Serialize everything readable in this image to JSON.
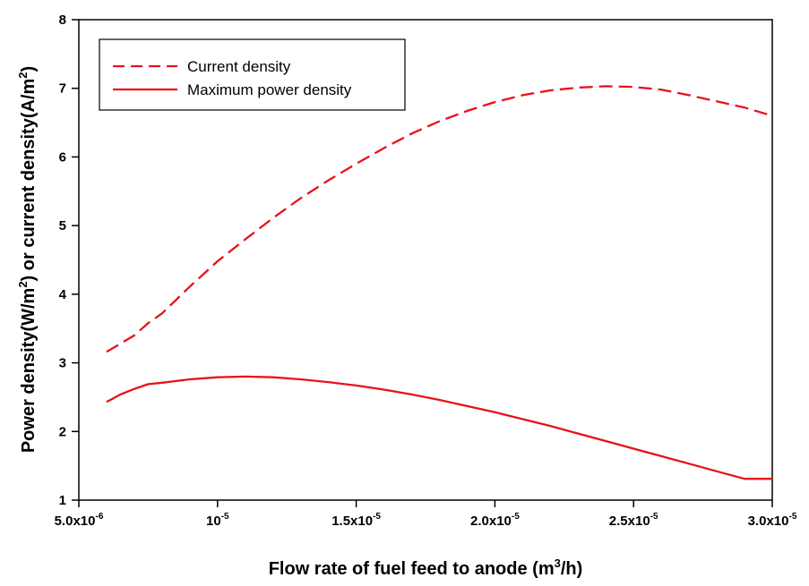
{
  "chart_data": {
    "type": "line",
    "xlabel": {
      "main": "Flow rate of fuel feed to anode (m",
      "sup": "3",
      "rest": "/h)"
    },
    "ylabel": {
      "p1": "Power density(W/m",
      "s1": "2",
      "p2": ") or current density(A/m",
      "s2": "2",
      "p3": ")"
    },
    "xlim": [
      5e-06,
      3e-05
    ],
    "ylim": [
      1,
      8
    ],
    "x_ticks": [
      {
        "value": 5e-06,
        "base": "5.0x10",
        "exp": "-6"
      },
      {
        "value": 1e-05,
        "base": "10",
        "exp": "-5"
      },
      {
        "value": 1.5e-05,
        "base": "1.5x10",
        "exp": "-5"
      },
      {
        "value": 2e-05,
        "base": "2.0x10",
        "exp": "-5"
      },
      {
        "value": 2.5e-05,
        "base": "2.5x10",
        "exp": "-5"
      },
      {
        "value": 3e-05,
        "base": "3.0x10",
        "exp": "-5"
      }
    ],
    "y_ticks": [
      {
        "value": 1,
        "label": "1"
      },
      {
        "value": 2,
        "label": "2"
      },
      {
        "value": 3,
        "label": "3"
      },
      {
        "value": 4,
        "label": "4"
      },
      {
        "value": 5,
        "label": "5"
      },
      {
        "value": 6,
        "label": "6"
      },
      {
        "value": 7,
        "label": "7"
      },
      {
        "value": 8,
        "label": "8"
      }
    ],
    "legend_position": "top-left",
    "series": [
      {
        "name": "Current density",
        "style": "dashed",
        "color": "#e8111b",
        "points": [
          [
            6e-06,
            3.16
          ],
          [
            7e-06,
            3.4
          ],
          [
            7.5e-06,
            3.58
          ],
          [
            8e-06,
            3.72
          ],
          [
            9e-06,
            4.11
          ],
          [
            1e-05,
            4.48
          ],
          [
            1.1e-05,
            4.8
          ],
          [
            1.2e-05,
            5.11
          ],
          [
            1.3e-05,
            5.4
          ],
          [
            1.4e-05,
            5.66
          ],
          [
            1.5e-05,
            5.9
          ],
          [
            1.6e-05,
            6.13
          ],
          [
            1.7e-05,
            6.34
          ],
          [
            1.8e-05,
            6.52
          ],
          [
            1.9e-05,
            6.67
          ],
          [
            2e-05,
            6.8
          ],
          [
            2.1e-05,
            6.9
          ],
          [
            2.2e-05,
            6.97
          ],
          [
            2.3e-05,
            7.01
          ],
          [
            2.4e-05,
            7.03
          ],
          [
            2.5e-05,
            7.02
          ],
          [
            2.6e-05,
            6.98
          ],
          [
            2.7e-05,
            6.9
          ],
          [
            2.8e-05,
            6.81
          ],
          [
            2.9e-05,
            6.72
          ],
          [
            3e-05,
            6.6
          ]
        ]
      },
      {
        "name": "Maximum power density",
        "style": "solid",
        "color": "#e8111b",
        "points": [
          [
            6e-06,
            2.43
          ],
          [
            6.5e-06,
            2.54
          ],
          [
            7e-06,
            2.62
          ],
          [
            7.5e-06,
            2.69
          ],
          [
            8e-06,
            2.71
          ],
          [
            9e-06,
            2.76
          ],
          [
            1e-05,
            2.79
          ],
          [
            1.1e-05,
            2.8
          ],
          [
            1.2e-05,
            2.79
          ],
          [
            1.3e-05,
            2.76
          ],
          [
            1.4e-05,
            2.72
          ],
          [
            1.5e-05,
            2.67
          ],
          [
            1.6e-05,
            2.61
          ],
          [
            1.7e-05,
            2.54
          ],
          [
            1.8e-05,
            2.46
          ],
          [
            1.9e-05,
            2.37
          ],
          [
            2e-05,
            2.28
          ],
          [
            2.1e-05,
            2.18
          ],
          [
            2.2e-05,
            2.08
          ],
          [
            2.3e-05,
            1.97
          ],
          [
            2.4e-05,
            1.86
          ],
          [
            2.5e-05,
            1.75
          ],
          [
            2.6e-05,
            1.64
          ],
          [
            2.7e-05,
            1.53
          ],
          [
            2.8e-05,
            1.42
          ],
          [
            2.9e-05,
            1.31
          ],
          [
            3e-05,
            1.31
          ]
        ]
      }
    ]
  }
}
